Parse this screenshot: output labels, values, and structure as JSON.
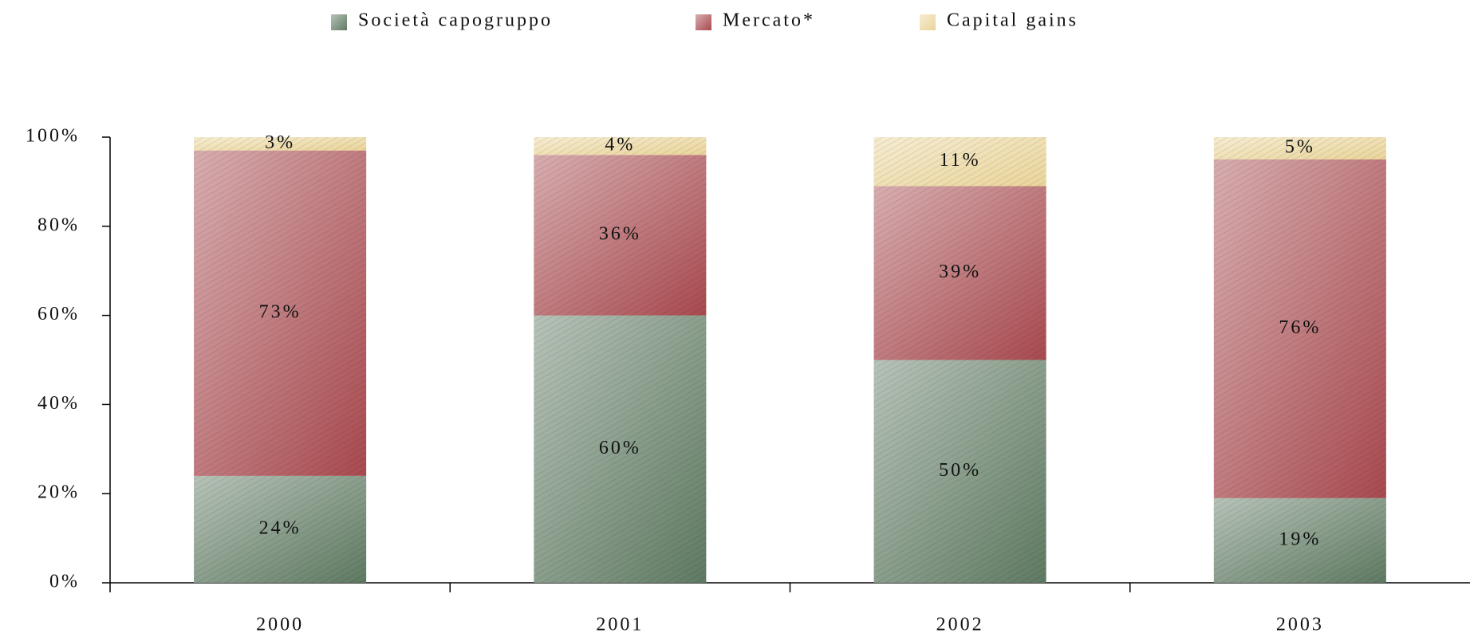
{
  "chart_data": {
    "type": "stacked_bar",
    "categories": [
      "2000",
      "2001",
      "2002",
      "2003"
    ],
    "series": [
      {
        "name": "Società capogruppo",
        "color": "#5f7a62",
        "values": [
          24,
          60,
          50,
          19
        ],
        "value_labels": [
          "24%",
          "60%",
          "50%",
          "19%"
        ]
      },
      {
        "name": "Mercato*",
        "color": "#a84a4f",
        "values": [
          73,
          36,
          39,
          76
        ],
        "value_labels": [
          "73%",
          "36%",
          "39%",
          "76%"
        ]
      },
      {
        "name": "Capital gains",
        "color": "#ead59a",
        "values": [
          3,
          4,
          11,
          5
        ],
        "value_labels": [
          "3%",
          "4%",
          "11%",
          "5%"
        ]
      }
    ],
    "ylim": [
      0,
      100
    ],
    "yticks": [
      {
        "value": 0,
        "label": "0%"
      },
      {
        "value": 20,
        "label": "20%"
      },
      {
        "value": 40,
        "label": "40%"
      },
      {
        "value": 60,
        "label": "60%"
      },
      {
        "value": 80,
        "label": "80%"
      },
      {
        "value": 100,
        "label": "100%"
      }
    ],
    "legend": "top"
  }
}
